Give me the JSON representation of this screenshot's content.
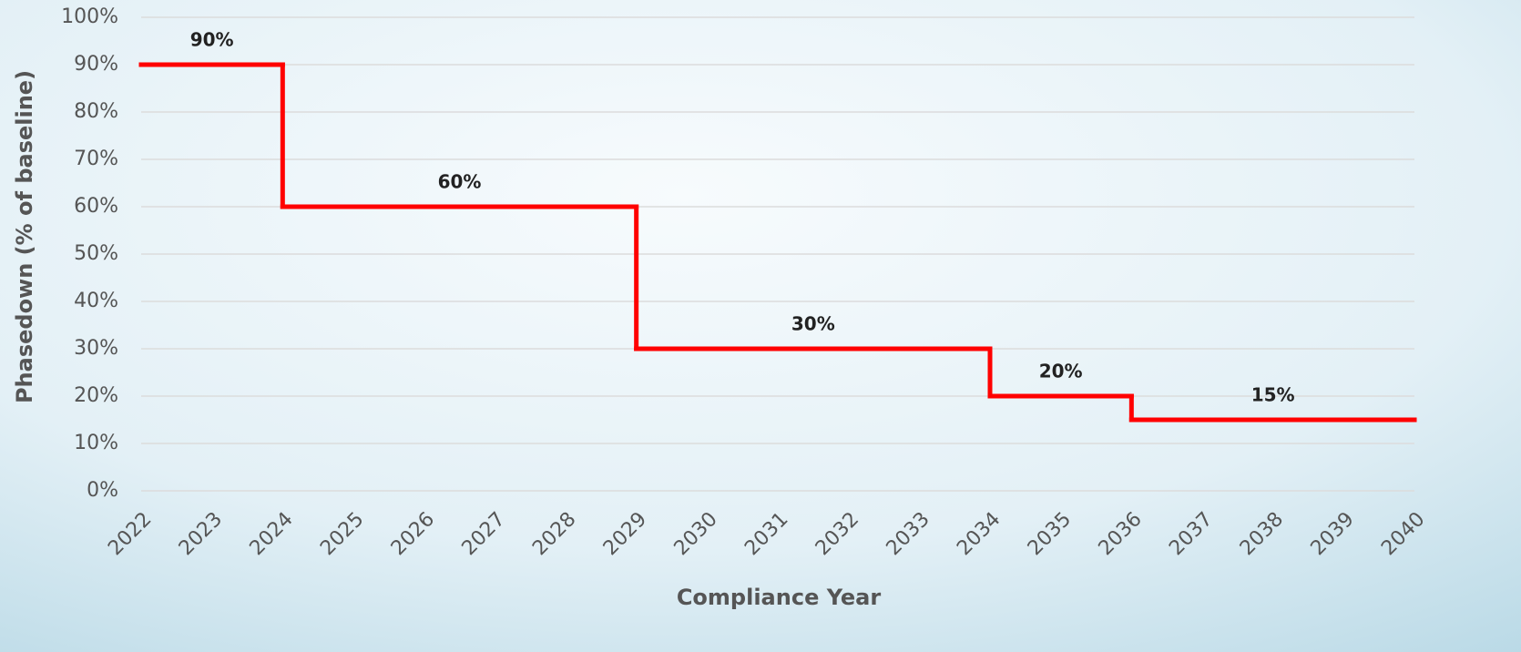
{
  "chart_data": {
    "type": "step",
    "y_label": "Phasedown (% of baseline)",
    "x_label": "Compliance Year",
    "x": [
      2022,
      2024,
      2029,
      2034,
      2036
    ],
    "values": [
      90,
      60,
      30,
      20,
      15
    ],
    "value_labels": [
      "90%",
      "60%",
      "30%",
      "20%",
      "15%"
    ],
    "color": "#ff0000",
    "xlim": [
      2022,
      2040
    ],
    "xticks": [
      2022,
      2023,
      2024,
      2025,
      2026,
      2027,
      2028,
      2029,
      2030,
      2031,
      2032,
      2033,
      2034,
      2035,
      2036,
      2037,
      2038,
      2039,
      2040
    ],
    "ylim": [
      0,
      100
    ],
    "yticks": [
      {
        "value": 0,
        "label": "0%"
      },
      {
        "value": 10,
        "label": "10%"
      },
      {
        "value": 20,
        "label": "20%"
      },
      {
        "value": 30,
        "label": "30%"
      },
      {
        "value": 40,
        "label": "40%"
      },
      {
        "value": 50,
        "label": "50%"
      },
      {
        "value": 60,
        "label": "60%"
      },
      {
        "value": 70,
        "label": "70%"
      },
      {
        "value": 80,
        "label": "80%"
      },
      {
        "value": 90,
        "label": "90%"
      },
      {
        "value": 100,
        "label": "100%"
      }
    ],
    "grid": true
  }
}
